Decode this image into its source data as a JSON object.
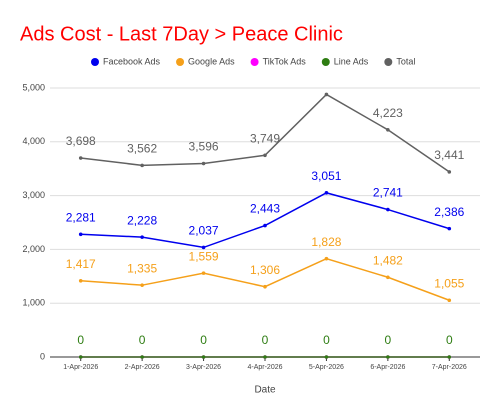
{
  "chart_data": {
    "type": "line",
    "title": "Ads Cost - Last 7Day > Peace Clinic",
    "title_color": "#ff0000",
    "x_label": "Date",
    "categories": [
      "1-Apr-2026",
      "2-Apr-2026",
      "3-Apr-2026",
      "4-Apr-2026",
      "5-Apr-2026",
      "6-Apr-2026",
      "7-Apr-2026"
    ],
    "series": [
      {
        "name": "Facebook Ads",
        "color": "#0000ee",
        "data_labels": true,
        "values": [
          2281,
          2228,
          2037,
          2443,
          3051,
          2741,
          2386
        ],
        "value_labels": [
          "2,281",
          "2,228",
          "2,037",
          "2,443",
          "3,051",
          "2,741",
          "2,386"
        ]
      },
      {
        "name": "Google Ads",
        "color": "#f5a01a",
        "data_labels": true,
        "values": [
          1417,
          1335,
          1559,
          1306,
          1828,
          1482,
          1055
        ],
        "value_labels": [
          "1,417",
          "1,335",
          "1,559",
          "1,306",
          "1,828",
          "1,482",
          "1,055"
        ]
      },
      {
        "name": "TikTok Ads",
        "color": "#ff00ff",
        "data_labels": false,
        "values": [
          0,
          0,
          0,
          0,
          0,
          0,
          0
        ]
      },
      {
        "name": "Line Ads",
        "color": "#2e7d12",
        "data_labels": true,
        "values": [
          0,
          0,
          0,
          0,
          0,
          0,
          0
        ]
      },
      {
        "name": "Total",
        "color": "#616161",
        "data_labels": true,
        "values": [
          3698,
          3562,
          3596,
          3749,
          4880,
          4223,
          3441
        ],
        "value_labels": [
          "3,698",
          "3,562",
          "3,596",
          "3,749",
          null,
          "4,223",
          "3,441"
        ]
      }
    ],
    "ylim": [
      0,
      5000
    ],
    "yticks": [
      0,
      {
        "value": 1000,
        "label": "1,000"
      },
      {
        "value": 2000,
        "label": "2,000"
      },
      {
        "value": 3000,
        "label": "3,000"
      },
      {
        "value": 4000,
        "label": "4,000"
      },
      {
        "value": 5000,
        "label": "5,000"
      }
    ],
    "grid": true
  }
}
